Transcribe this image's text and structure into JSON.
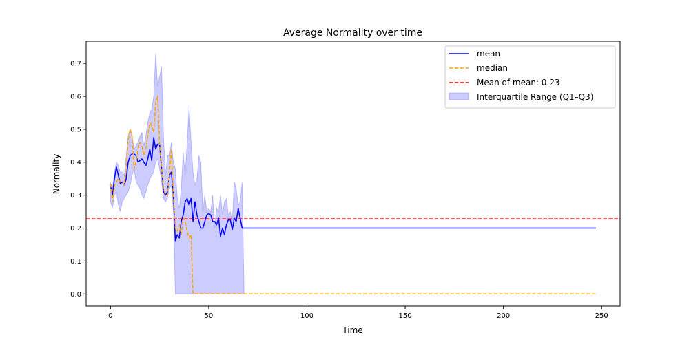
{
  "chart_data": {
    "type": "line",
    "title": "Average Normality over time",
    "xlabel": "Time",
    "ylabel": "Normality",
    "xlim": [
      -12.4,
      259.4
    ],
    "ylim": [
      -0.037,
      0.767
    ],
    "xticks": [
      0,
      50,
      100,
      150,
      200,
      250
    ],
    "yticks": [
      0.0,
      0.1,
      0.2,
      0.3,
      0.4,
      0.5,
      0.6,
      0.7
    ],
    "grid": false,
    "legend_position": "top-right",
    "legend": [
      "mean",
      "median",
      "Mean of mean: 0.23",
      "Interquartile Range (Q1–Q3)"
    ],
    "colors": {
      "mean": "#0000ff",
      "median": "#ffa500",
      "reference": "#ff0000",
      "iqr_fill": "#0000ff"
    },
    "reference_line": {
      "label": "Mean of mean: 0.23",
      "value": 0.228
    },
    "series": [
      {
        "name": "mean",
        "style": "solid",
        "x": [
          0,
          1,
          2,
          3,
          4,
          5,
          6,
          7,
          8,
          9,
          10,
          11,
          12,
          13,
          14,
          15,
          16,
          17,
          18,
          19,
          20,
          21,
          22,
          23,
          24,
          25,
          26,
          27,
          28,
          29,
          30,
          31,
          32,
          33,
          34,
          35,
          36,
          37,
          38,
          39,
          40,
          41,
          42,
          43,
          44,
          45,
          46,
          47,
          48,
          49,
          50,
          51,
          52,
          53,
          54,
          55,
          56,
          57,
          58,
          59,
          60,
          61,
          62,
          63,
          64,
          65,
          66,
          67,
          68,
          100,
          150,
          200,
          247
        ],
        "y": [
          0.33,
          0.3,
          0.35,
          0.385,
          0.36,
          0.335,
          0.34,
          0.33,
          0.35,
          0.4,
          0.42,
          0.425,
          0.425,
          0.42,
          0.4,
          0.405,
          0.41,
          0.4,
          0.39,
          0.41,
          0.44,
          0.405,
          0.475,
          0.44,
          0.455,
          0.455,
          0.38,
          0.31,
          0.3,
          0.31,
          0.36,
          0.37,
          0.3,
          0.16,
          0.18,
          0.17,
          0.22,
          0.24,
          0.28,
          0.29,
          0.27,
          0.29,
          0.22,
          0.28,
          0.24,
          0.22,
          0.2,
          0.2,
          0.22,
          0.24,
          0.245,
          0.24,
          0.22,
          0.22,
          0.21,
          0.23,
          0.175,
          0.2,
          0.18,
          0.21,
          0.225,
          0.225,
          0.195,
          0.23,
          0.22,
          0.26,
          0.23,
          0.2,
          0.2,
          0.2,
          0.2,
          0.2,
          0.2
        ]
      },
      {
        "name": "median",
        "style": "dashed",
        "x": [
          0,
          1,
          2,
          3,
          4,
          5,
          6,
          7,
          8,
          9,
          10,
          11,
          12,
          13,
          14,
          15,
          16,
          17,
          18,
          19,
          20,
          21,
          22,
          23,
          24,
          25,
          26,
          27,
          28,
          29,
          30,
          31,
          32,
          33,
          34,
          35,
          36,
          37,
          38,
          39,
          40,
          41,
          42,
          43,
          47,
          50,
          100,
          150,
          200,
          247
        ],
        "y": [
          0.335,
          0.28,
          0.33,
          0.34,
          0.35,
          0.34,
          0.34,
          0.33,
          0.38,
          0.47,
          0.5,
          0.48,
          0.38,
          0.4,
          0.44,
          0.46,
          0.45,
          0.42,
          0.44,
          0.48,
          0.52,
          0.51,
          0.49,
          0.58,
          0.6,
          0.46,
          0.38,
          0.32,
          0.3,
          0.3,
          0.37,
          0.44,
          0.3,
          0.2,
          0.19,
          0.21,
          0.18,
          0.23,
          0.22,
          0.19,
          0.17,
          0.18,
          0.0,
          0.0,
          0.0,
          0.0,
          0.0,
          0.0,
          0.0,
          0.0
        ]
      }
    ],
    "iqr": {
      "name": "Interquartile Range (Q1–Q3)",
      "x": [
        0,
        1,
        2,
        3,
        4,
        5,
        6,
        7,
        8,
        9,
        10,
        11,
        12,
        13,
        14,
        15,
        16,
        17,
        18,
        19,
        20,
        21,
        22,
        23,
        24,
        25,
        26,
        27,
        28,
        29,
        30,
        31,
        32,
        33,
        34,
        35,
        36,
        37,
        38,
        39,
        40,
        41,
        42,
        43,
        44,
        45,
        46,
        47,
        48,
        49,
        50,
        51,
        52,
        53,
        54,
        55,
        56,
        57,
        58,
        59,
        60,
        61,
        62,
        63,
        64,
        65,
        66,
        67,
        68
      ],
      "q1": [
        0.28,
        0.26,
        0.3,
        0.31,
        0.27,
        0.25,
        0.28,
        0.29,
        0.3,
        0.31,
        0.33,
        0.36,
        0.38,
        0.34,
        0.33,
        0.32,
        0.3,
        0.29,
        0.31,
        0.33,
        0.35,
        0.36,
        0.37,
        0.4,
        0.41,
        0.38,
        0.34,
        0.29,
        0.28,
        0.29,
        0.32,
        0.33,
        0.25,
        0.0,
        0.0,
        0.0,
        0.0,
        0.0,
        0.0,
        0.0,
        0.0,
        0.0,
        0.0,
        0.0,
        0.0,
        0.0,
        0.0,
        0.0,
        0.0,
        0.0,
        0.0,
        0.0,
        0.0,
        0.0,
        0.0,
        0.0,
        0.0,
        0.0,
        0.0,
        0.0,
        0.0,
        0.0,
        0.0,
        0.0,
        0.0,
        0.0,
        0.0,
        0.0,
        0.0
      ],
      "q3": [
        0.34,
        0.32,
        0.37,
        0.4,
        0.39,
        0.37,
        0.37,
        0.36,
        0.42,
        0.48,
        0.5,
        0.48,
        0.44,
        0.45,
        0.46,
        0.48,
        0.49,
        0.45,
        0.48,
        0.52,
        0.55,
        0.56,
        0.6,
        0.73,
        0.63,
        0.66,
        0.69,
        0.48,
        0.36,
        0.42,
        0.42,
        0.46,
        0.4,
        0.38,
        0.29,
        0.26,
        0.32,
        0.43,
        0.36,
        0.46,
        0.57,
        0.46,
        0.37,
        0.33,
        0.35,
        0.42,
        0.4,
        0.25,
        0.3,
        0.25,
        0.26,
        0.25,
        0.3,
        0.2,
        0.26,
        0.25,
        0.3,
        0.24,
        0.28,
        0.29,
        0.24,
        0.25,
        0.22,
        0.34,
        0.32,
        0.27,
        0.28,
        0.34,
        0.0
      ]
    }
  }
}
